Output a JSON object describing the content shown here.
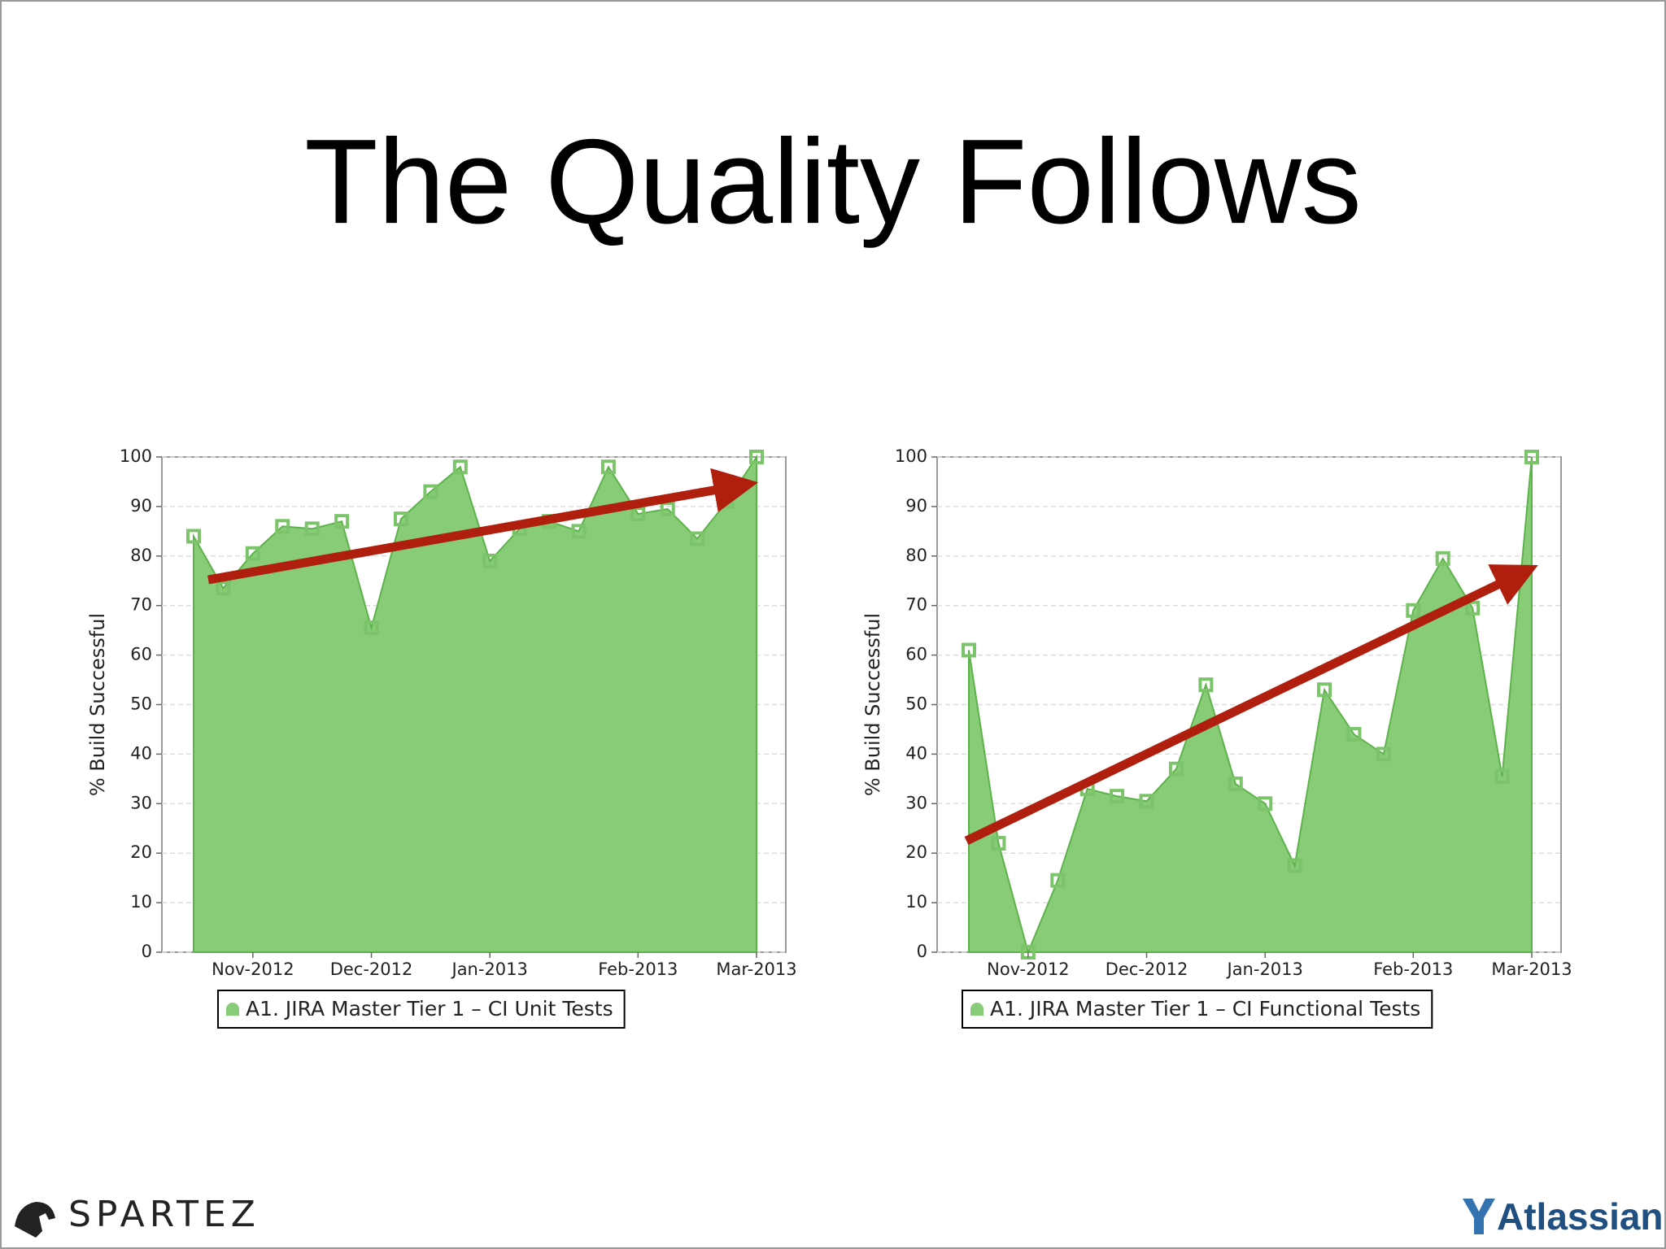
{
  "title": "The Quality Follows",
  "chart_data": [
    {
      "type": "area",
      "categories": [
        null,
        null,
        "Nov-2012",
        null,
        null,
        null,
        "Dec-2012",
        null,
        null,
        null,
        "Jan-2013",
        null,
        null,
        null,
        null,
        "Feb-2013",
        null,
        null,
        null,
        "Mar-2013"
      ],
      "series": [
        {
          "name": "A1. JIRA Master Tier 1 – CI Unit Tests",
          "color": "#88cc77",
          "values": [
            84,
            73.5,
            80.5,
            86,
            85.5,
            87,
            65.5,
            87.5,
            93,
            98,
            79,
            85.5,
            87,
            85,
            98,
            88.5,
            89.5,
            83.5,
            91,
            100
          ]
        }
      ],
      "y_label": "% Build Successful",
      "ylim": [
        0,
        100
      ],
      "yticks": [
        0,
        10,
        20,
        30,
        40,
        50,
        60,
        70,
        80,
        90,
        100
      ],
      "grid": true
    },
    {
      "type": "area",
      "categories": [
        null,
        null,
        "Nov-2012",
        null,
        null,
        null,
        "Dec-2012",
        null,
        null,
        null,
        "Jan-2013",
        null,
        null,
        null,
        null,
        "Feb-2013",
        null,
        null,
        null,
        "Mar-2013"
      ],
      "series": [
        {
          "name": "A1. JIRA Master Tier 1 – CI Functional Tests",
          "color": "#88cc77",
          "values": [
            61,
            22,
            0,
            14.5,
            33,
            31.5,
            30.5,
            37,
            54,
            34,
            30,
            17.5,
            53,
            44,
            40,
            69,
            79.5,
            69.5,
            35.5,
            100
          ]
        }
      ],
      "y_label": "% Build Successful",
      "ylim": [
        0,
        100
      ],
      "yticks": [
        0,
        10,
        20,
        30,
        40,
        50,
        60,
        70,
        80,
        90,
        100
      ],
      "grid": true
    }
  ],
  "footer": {
    "left_logo": "SPARTEZ",
    "right_logo": "Atlassian"
  }
}
